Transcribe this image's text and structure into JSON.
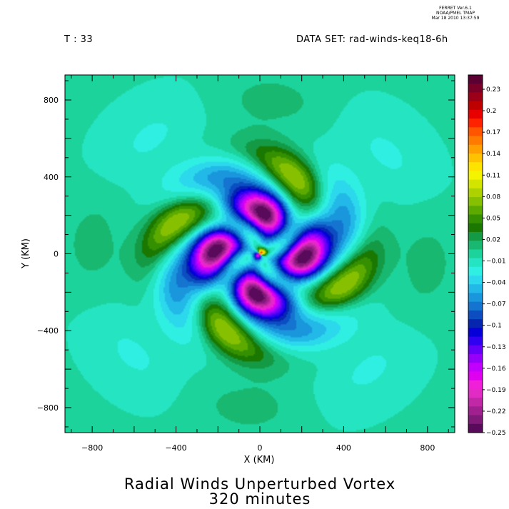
{
  "header": {
    "ferret_lines": [
      "FERRET  Ver.6.1",
      "NOAA/PMEL TMAP",
      "Mar 18 2010 13:37:59"
    ],
    "t_label": "T : 33",
    "dataset_label": "DATA SET: rad-winds-keq18-6h"
  },
  "footer": {
    "title": "Radial Winds Unperturbed Vortex",
    "time": "320 minutes"
  },
  "chart_data": {
    "type": "heatmap",
    "title": "Radial Winds Unperturbed Vortex",
    "subtitle": "320 minutes",
    "xlabel": "X (KM)",
    "ylabel": "Y (KM)",
    "xlim": [
      -930,
      930
    ],
    "ylim": [
      -930,
      930
    ],
    "x_ticks": [
      -800,
      -400,
      0,
      400,
      800
    ],
    "y_ticks": [
      -800,
      -400,
      0,
      400,
      800
    ],
    "colorbar": {
      "range": [
        -0.25,
        0.25
      ],
      "step": 0.01,
      "labels": [
        "0.23",
        "0.2",
        "0.17",
        "0.14",
        "0.11",
        "0.08",
        "0.05",
        "0.02",
        "-0.01",
        "-0.04",
        "-0.07",
        "-0.1",
        "-0.13",
        "-0.16",
        "-0.19",
        "-0.22",
        "-0.25"
      ],
      "label_values": [
        0.23,
        0.2,
        0.17,
        0.14,
        0.11,
        0.08,
        0.05,
        0.02,
        -0.01,
        -0.04,
        -0.07,
        -0.1,
        -0.13,
        -0.16,
        -0.19,
        -0.22,
        -0.25
      ],
      "colors": [
        "#5a0033",
        "#7a0028",
        "#9c0018",
        "#bf0000",
        "#e80000",
        "#ff2200",
        "#ff5500",
        "#ff7a00",
        "#ff9f00",
        "#ffc200",
        "#ffe300",
        "#f4f400",
        "#d2e400",
        "#aed200",
        "#86c000",
        "#5ca900",
        "#349000",
        "#1a7800",
        "#149a44",
        "#19b870",
        "#1dd39c",
        "#25e4c2",
        "#2fefe2",
        "#2cd8ec",
        "#22b8e8",
        "#1a96dc",
        "#1474d0",
        "#0c4ec2",
        "#0626b0",
        "#0600d8",
        "#3000f0",
        "#6400f8",
        "#9400fa",
        "#c000fc",
        "#e000f0",
        "#f020d8",
        "#e02cc2",
        "#c028a8",
        "#a02090",
        "#801a78",
        "#5a0a5a"
      ],
      "color_bottom_value": -0.25,
      "color_top_value": 0.25
    },
    "field_description": {
      "background_value": -0.005,
      "features": [
        {
          "kind": "wavenumber-4 spiral",
          "inner_min": -0.25,
          "outer_max": 0.08
        }
      ]
    }
  }
}
